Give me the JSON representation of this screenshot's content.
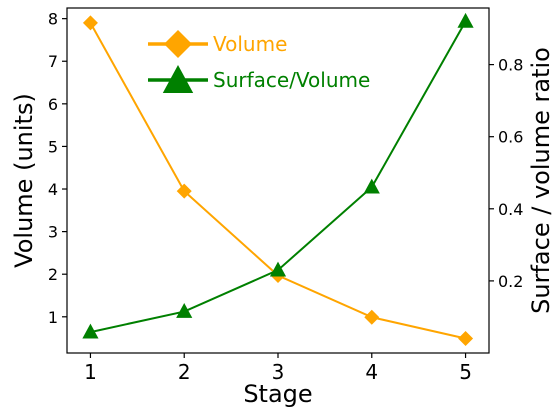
{
  "chart_data": {
    "type": "line",
    "title": "",
    "xlabel": "Stage",
    "ylabel_left": "Volume (units)",
    "ylabel_right": "Surface / volume ratio",
    "x": [
      1,
      2,
      3,
      4,
      5
    ],
    "x_ticks": [
      "1",
      "2",
      "3",
      "4",
      "5"
    ],
    "xlim": [
      0.75,
      5.25
    ],
    "ylim_left": [
      0.15,
      8.25
    ],
    "ylim_right": [
      0.0,
      0.957
    ],
    "y_ticks_left": [
      "1",
      "2",
      "3",
      "4",
      "5",
      "6",
      "7",
      "8"
    ],
    "y_ticks_right": [
      "0.2",
      "0.4",
      "0.6",
      "0.8"
    ],
    "legend_position": "top-center",
    "grid": false,
    "series": [
      {
        "name": "Volume",
        "axis": "left",
        "color": "#FFA500",
        "marker": "diamond",
        "values": [
          7.9,
          3.95,
          1.97,
          0.99,
          0.49
        ]
      },
      {
        "name": "Surface/Volume",
        "axis": "right",
        "color": "#008000",
        "marker": "triangle",
        "values": [
          0.058,
          0.115,
          0.23,
          0.46,
          0.92
        ]
      }
    ]
  }
}
